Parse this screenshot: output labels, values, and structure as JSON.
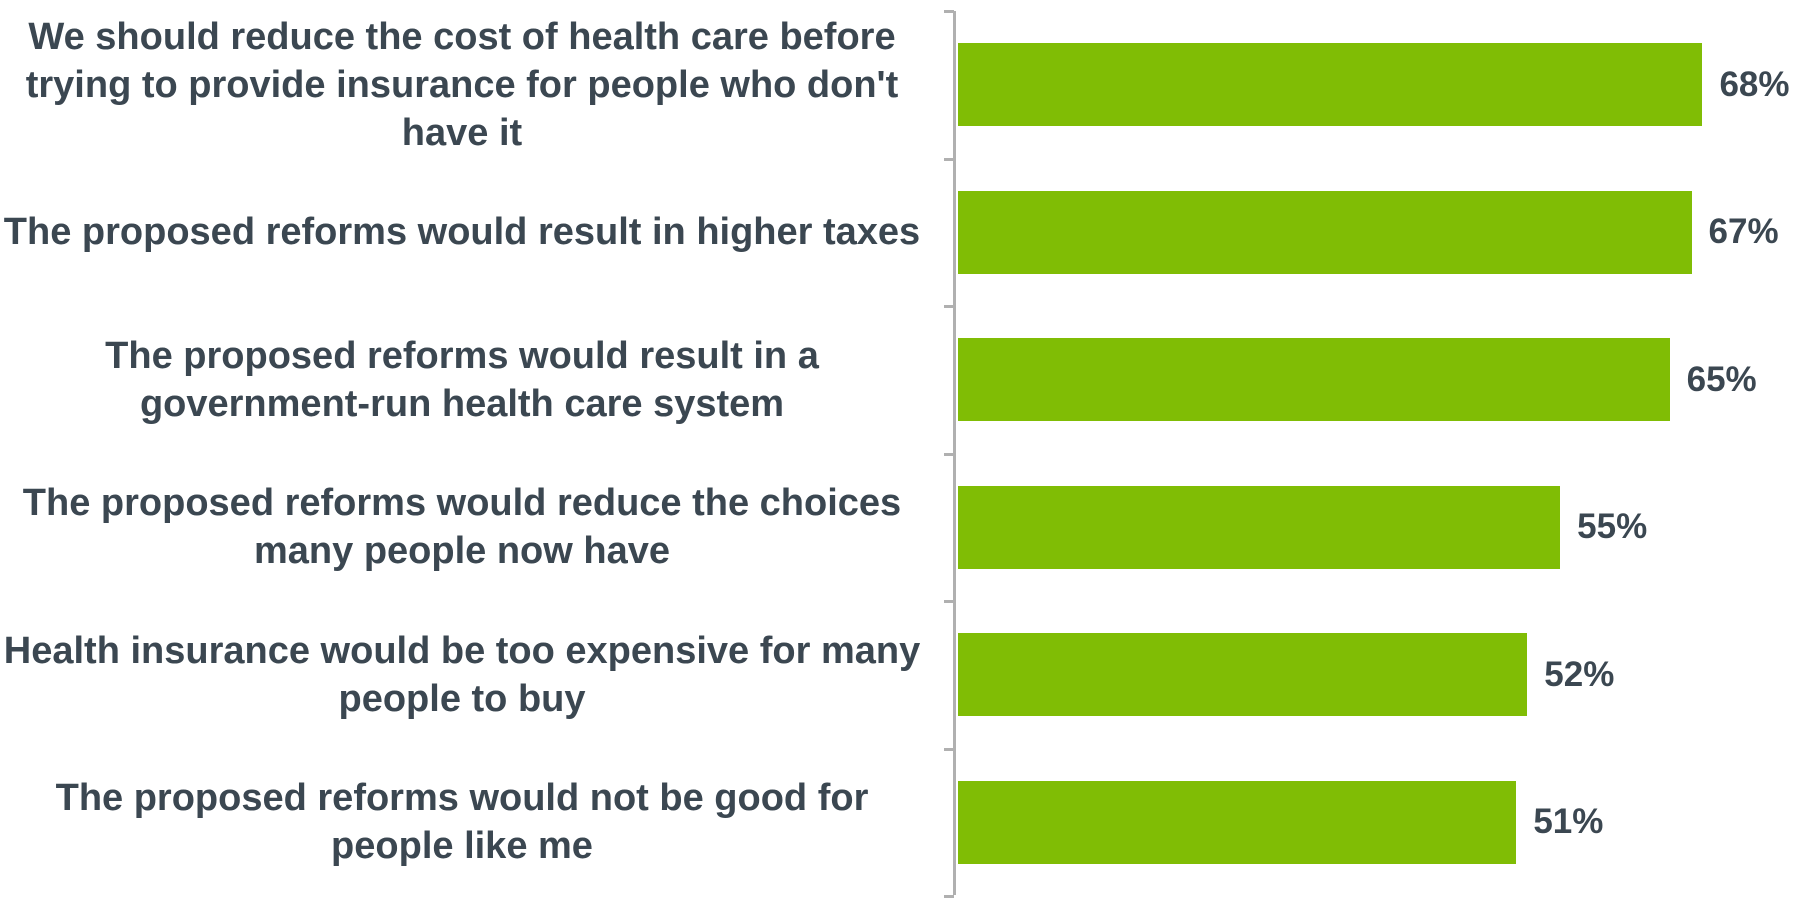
{
  "chart_data": {
    "type": "barh",
    "categories": [
      "We should reduce the cost of health care before trying to provide insurance for people who don't have it",
      "The proposed reforms would result in higher taxes",
      "The proposed reforms would result in a government-run health care system",
      "The proposed reforms would reduce the choices many people now have",
      "Health insurance would be too expensive for many people to buy",
      "The proposed reforms would not be good for people like me"
    ],
    "values": [
      68,
      67,
      65,
      55,
      52,
      51
    ],
    "value_labels": [
      "68%",
      "67%",
      "65%",
      "55%",
      "52%",
      "51%"
    ],
    "color": "#80bd05",
    "xlim": [
      0,
      77
    ]
  }
}
